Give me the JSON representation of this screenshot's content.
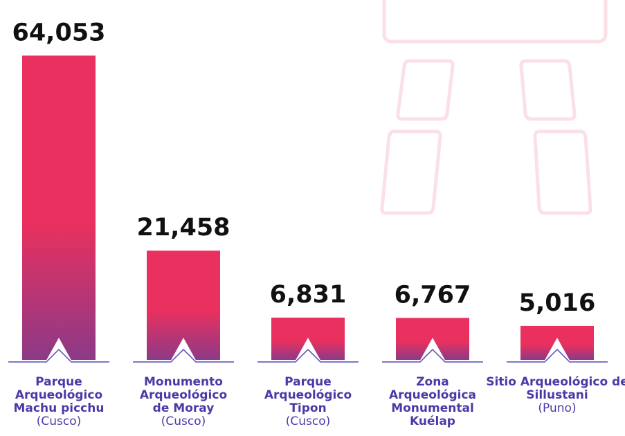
{
  "chart_data": {
    "type": "bar",
    "categories": [
      "Parque Arqueológico Machu picchu",
      "Monumento Arqueológico de Moray",
      "Parque Arqueológico Tipon",
      "Zona Arqueológica Monumental Kuélap",
      "Sitio Arqueológico de Sillustani"
    ],
    "category_regions": [
      "(Cusco)",
      "(Cusco)",
      "(Cusco)",
      null,
      "(Puno)"
    ],
    "values": [
      64053,
      21458,
      6831,
      6767,
      5016
    ],
    "value_labels": [
      "64,053",
      "21,458",
      "6,831",
      "6,767",
      "5,016"
    ],
    "color": "#e9305f",
    "ylim": [
      -2400,
      70000
    ]
  }
}
